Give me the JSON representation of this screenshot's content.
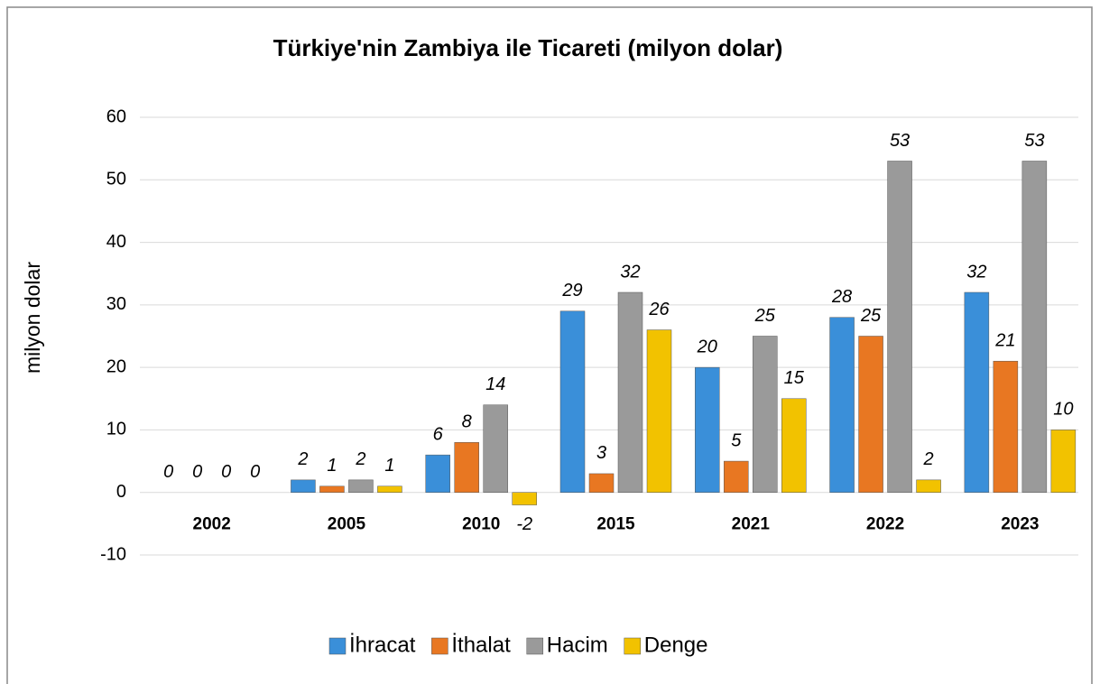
{
  "chart_data": {
    "type": "bar",
    "title": "Türkiye'nin Zambiya ile Ticareti (milyon dolar)",
    "y_label": "milyon dolar",
    "categories": [
      "2002",
      "2005",
      "2010",
      "2015",
      "2021",
      "2022",
      "2023"
    ],
    "series": [
      {
        "name": "İhracat",
        "color": "#3a8fd9",
        "values": [
          0,
          2,
          6,
          29,
          20,
          28,
          32
        ]
      },
      {
        "name": "İthalat",
        "color": "#e87722",
        "values": [
          0,
          1,
          8,
          3,
          5,
          25,
          21
        ]
      },
      {
        "name": "Hacim",
        "color": "#9a9a9a",
        "values": [
          0,
          2,
          14,
          32,
          25,
          53,
          53
        ]
      },
      {
        "name": "Denge",
        "color": "#f2c200",
        "values": [
          0,
          1,
          -2,
          26,
          15,
          2,
          10
        ]
      }
    ],
    "ylim": [
      -10,
      60
    ],
    "yticks": [
      -10,
      0,
      10,
      20,
      30,
      40,
      50,
      60
    ],
    "grid": true,
    "legend": "bottom"
  }
}
